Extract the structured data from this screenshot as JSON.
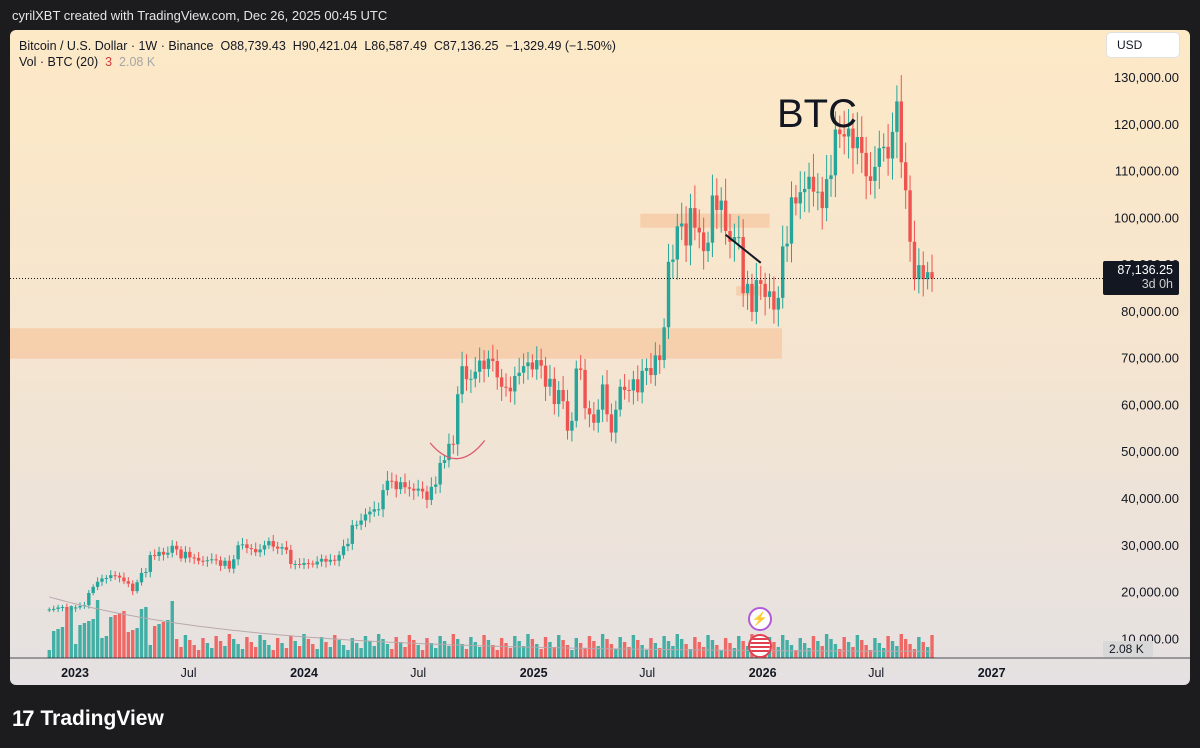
{
  "header": {
    "caption": "cyrilXBT created with TradingView.com, Dec 26, 2025 00:45 UTC"
  },
  "legend": {
    "symbol": "Bitcoin / U.S. Dollar · 1W · Binance",
    "open": "O88,739.43",
    "high": "H90,421.04",
    "low": "L86,587.49",
    "close": "C87,136.25",
    "change": "−1,329.49 (−1.50%)",
    "vol_label": "Vol · BTC (20)",
    "vol_value": "3",
    "vol_avg": "2.08 K"
  },
  "currency_button": "USD",
  "annotation": "BTC",
  "last_price": {
    "price": "87,136.25",
    "countdown": "3d 0h"
  },
  "volume_tag": "2.08 K",
  "footer": {
    "brand": "TradingView",
    "logo_icon": "tradingview-logo-icon"
  },
  "icons": [
    "lightning-event-icon",
    "us-flag-event-icon"
  ],
  "colors": {
    "up": "#26a69a",
    "down": "#ef5350",
    "zone": "#f6c7a1",
    "annotation_line": "#131722",
    "curve": "#e0566b"
  },
  "chart_data": {
    "type": "candlestick",
    "interval": "1W",
    "y_axis": {
      "ticks": [
        "10,000.00",
        "20,000.00",
        "30,000.00",
        "40,000.00",
        "50,000.00",
        "60,000.00",
        "70,000.00",
        "80,000.00",
        "90,000.00",
        "100,000.00",
        "110,000.00",
        "120,000.00",
        "130,000.00"
      ],
      "range": [
        6000,
        136000
      ]
    },
    "x_axis": {
      "ticks": [
        {
          "label": "2023",
          "date": "2023-01-01",
          "bold": true
        },
        {
          "label": "Jul",
          "date": "2023-07-01",
          "bold": false
        },
        {
          "label": "2024",
          "date": "2024-01-01",
          "bold": true
        },
        {
          "label": "Jul",
          "date": "2024-07-01",
          "bold": false
        },
        {
          "label": "2025",
          "date": "2025-01-01",
          "bold": true
        },
        {
          "label": "Jul",
          "date": "2025-07-01",
          "bold": false
        },
        {
          "label": "2026",
          "date": "2026-01-01",
          "bold": true
        },
        {
          "label": "Jul",
          "date": "2026-07-01",
          "bold": false
        },
        {
          "label": "2027",
          "date": "2027-01-01",
          "bold": true
        }
      ]
    },
    "first_candle_date": "2022-11-21",
    "closes_weekly": [
      16400,
      16500,
      16800,
      16900,
      16600,
      16600,
      16800,
      17100,
      17300,
      19900,
      21200,
      22300,
      23000,
      23100,
      23700,
      23600,
      23200,
      22400,
      21900,
      20300,
      22200,
      24200,
      24400,
      28000,
      27800,
      28700,
      28100,
      28500,
      30000,
      29200,
      27300,
      28700,
      27500,
      27400,
      26800,
      26700,
      26900,
      27100,
      26900,
      25700,
      26800,
      25100,
      27100,
      30100,
      30300,
      29500,
      29300,
      28600,
      29200,
      30100,
      31000,
      29800,
      29400,
      29700,
      29100,
      26100,
      26100,
      25900,
      26300,
      26200,
      26000,
      26600,
      27200,
      26600,
      27000,
      26800,
      28000,
      29900,
      30400,
      34400,
      34500,
      35400,
      36700,
      37300,
      37800,
      37800,
      41900,
      43900,
      43800,
      42100,
      43600,
      42500,
      42200,
      41800,
      42200,
      41600,
      39800,
      42600,
      43100,
      47700,
      48300,
      51800,
      51700,
      62400,
      68400,
      65600,
      65700,
      67200,
      69600,
      67800,
      70000,
      69500,
      66000,
      64000,
      63800,
      63000,
      66300,
      67000,
      68400,
      69200,
      67700,
      69700,
      68500,
      64000,
      65700,
      60300,
      63300,
      60900,
      54600,
      56700,
      67900,
      67600,
      59400,
      58100,
      56300,
      59100,
      64500,
      58100,
      54200,
      59100,
      64000,
      63300,
      63200,
      65600,
      62800,
      67400,
      68000,
      66500,
      70700,
      69700,
      76700,
      90700,
      91200,
      98300,
      98900,
      94200,
      102200,
      98000,
      97000,
      93000,
      94800,
      104900,
      101800,
      103800,
      97300,
      95000,
      96000,
      96000,
      84000,
      86000,
      80000,
      86800,
      86000,
      83200,
      84400,
      80500,
      83000,
      94000,
      94600,
      104500,
      103200,
      105600,
      106300,
      108900,
      105700,
      105700,
      102200,
      108400,
      109200,
      119000,
      118000,
      117500,
      119200,
      115000,
      117400,
      114000,
      109000,
      108000,
      111000,
      115000,
      115300,
      112800,
      118500,
      125000,
      112000,
      106000,
      95000,
      87000,
      90000,
      87000,
      88500,
      87136
    ],
    "notable_levels": {
      "last_close": 87136.25,
      "all_time_high": 126000,
      "cycle_low": 15500
    },
    "supply_zones": [
      {
        "low": 98000,
        "high": 101000
      },
      {
        "low": 70000,
        "high": 76500
      }
    ],
    "small_zone": {
      "low": 83500,
      "high": 85500
    },
    "trendline": [
      {
        "date": "2025-11-03",
        "price": 96500
      },
      {
        "date": "2025-12-29",
        "price": 90500
      }
    ],
    "volume_note": "weekly volume bars along the bottom, colored by candle direction"
  }
}
